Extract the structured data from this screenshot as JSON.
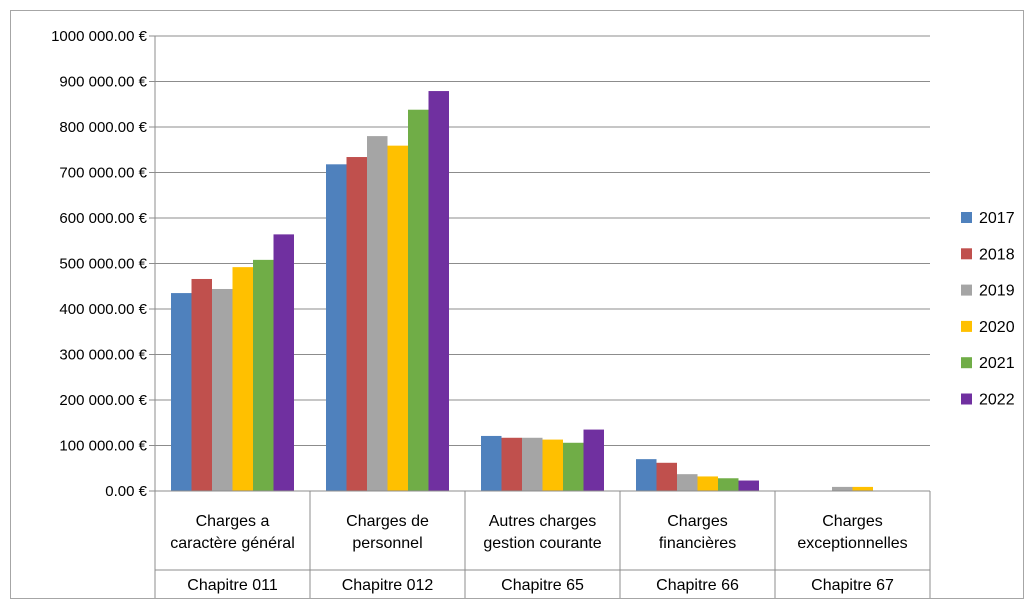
{
  "chart_data": {
    "type": "bar",
    "title": "",
    "xlabel": "",
    "ylabel": "",
    "ylim": [
      0,
      1000000
    ],
    "ytick_step": 100000,
    "ytick_labels": [
      "0.00 €",
      "100 000.00 €",
      "200 000.00 €",
      "300 000.00 €",
      "400 000.00 €",
      "500 000.00 €",
      "600 000.00 €",
      "700 000.00 €",
      "800 000.00 €",
      "900 000.00 €",
      "1000 000.00 €"
    ],
    "grid": true,
    "legend_position": "right",
    "categories": [
      {
        "lines": [
          "Charges a",
          "caractère général"
        ],
        "group": "Chapitre 011"
      },
      {
        "lines": [
          "Charges de",
          "personnel"
        ],
        "group": "Chapitre 012"
      },
      {
        "lines": [
          "Autres charges",
          "gestion courante"
        ],
        "group": "Chapitre 65"
      },
      {
        "lines": [
          "Charges",
          "financières"
        ],
        "group": "Chapitre 66"
      },
      {
        "lines": [
          "Charges",
          "exceptionnelles"
        ],
        "group": "Chapitre 67"
      }
    ],
    "series": [
      {
        "name": "2017",
        "color": "#4f81bd",
        "values": [
          435000,
          718000,
          121000,
          70000,
          0
        ]
      },
      {
        "name": "2018",
        "color": "#c0504d",
        "values": [
          466000,
          734000,
          117000,
          62000,
          0
        ]
      },
      {
        "name": "2019",
        "color": "#a5a5a5",
        "values": [
          444000,
          780000,
          117000,
          37000,
          9000
        ]
      },
      {
        "name": "2020",
        "color": "#ffc000",
        "values": [
          492000,
          759000,
          113000,
          32000,
          9000
        ]
      },
      {
        "name": "2021",
        "color": "#70ad47",
        "values": [
          508000,
          838000,
          106000,
          28000,
          0
        ]
      },
      {
        "name": "2022",
        "color": "#7030a0",
        "values": [
          564000,
          879000,
          135000,
          23000,
          0
        ]
      }
    ]
  }
}
